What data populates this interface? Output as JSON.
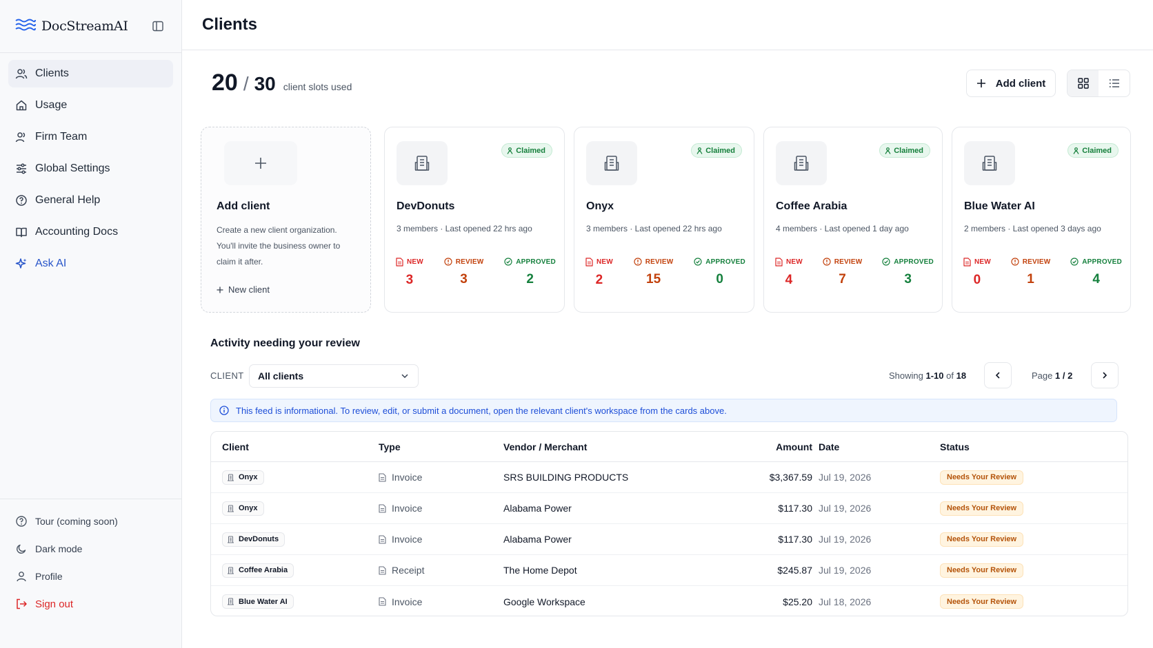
{
  "brand": {
    "name": "DocStreamAI"
  },
  "sidebar": {
    "items": [
      {
        "label": "Clients",
        "icon": "users-icon"
      },
      {
        "label": "Usage",
        "icon": "home-icon"
      },
      {
        "label": "Firm Team",
        "icon": "team-icon"
      },
      {
        "label": "Global Settings",
        "icon": "sliders-icon"
      },
      {
        "label": "General Help",
        "icon": "help-icon"
      },
      {
        "label": "Accounting Docs",
        "icon": "book-icon"
      },
      {
        "label": "Ask AI",
        "icon": "sparkle-icon"
      }
    ],
    "bottom": [
      {
        "label": "Tour (coming soon)",
        "icon": "help-icon"
      },
      {
        "label": "Dark mode",
        "icon": "moon-icon"
      },
      {
        "label": "Profile",
        "icon": "user-icon"
      },
      {
        "label": "Sign out",
        "icon": "sign-out-icon"
      }
    ]
  },
  "header": {
    "title": "Clients"
  },
  "slots": {
    "used": "20",
    "separator": "/",
    "total": "30",
    "label": "client slots used"
  },
  "toolbar": {
    "add_client": "Add client"
  },
  "add_card": {
    "title": "Add client",
    "description": "Create a new client organization. You'll invite the business owner to claim it after.",
    "link": "New client"
  },
  "stat_labels": {
    "new": "NEW",
    "review": "REVIEW",
    "approved": "APPROVED"
  },
  "clients": [
    {
      "name": "DevDonuts",
      "badge": "Claimed",
      "meta": "3 members · Last opened 22 hrs ago",
      "new": "3",
      "review": "3",
      "approved": "2"
    },
    {
      "name": "Onyx",
      "badge": "Claimed",
      "meta": "3 members · Last opened 22 hrs ago",
      "new": "2",
      "review": "15",
      "approved": "0"
    },
    {
      "name": "Coffee Arabia",
      "badge": "Claimed",
      "meta": "4 members · Last opened 1 day ago",
      "new": "4",
      "review": "7",
      "approved": "3"
    },
    {
      "name": "Blue Water AI",
      "badge": "Claimed",
      "meta": "2 members · Last opened 3 days ago",
      "new": "0",
      "review": "1",
      "approved": "4"
    }
  ],
  "activity": {
    "title": "Activity needing your review",
    "filter_label": "CLIENT",
    "filter_value": "All clients",
    "showing_prefix": "Showing",
    "showing_range": "1-10",
    "showing_of": "of",
    "showing_total": "18",
    "page_prefix": "Page",
    "page_value": "1 / 2",
    "banner": "This feed is informational. To review, edit, or submit a document, open the relevant client's workspace from the cards above."
  },
  "table": {
    "headers": {
      "client": "Client",
      "type": "Type",
      "vendor": "Vendor / Merchant",
      "amount": "Amount",
      "date": "Date",
      "status": "Status"
    },
    "rows": [
      {
        "client": "Onyx",
        "type": "Invoice",
        "vendor": "SRS BUILDING PRODUCTS",
        "amount": "$3,367.59",
        "date": "Jul 19, 2026",
        "status": "Needs Your Review"
      },
      {
        "client": "Onyx",
        "type": "Invoice",
        "vendor": "Alabama Power",
        "amount": "$117.30",
        "date": "Jul 19, 2026",
        "status": "Needs Your Review"
      },
      {
        "client": "DevDonuts",
        "type": "Invoice",
        "vendor": "Alabama Power",
        "amount": "$117.30",
        "date": "Jul 19, 2026",
        "status": "Needs Your Review"
      },
      {
        "client": "Coffee Arabia",
        "type": "Receipt",
        "vendor": "The Home Depot",
        "amount": "$245.87",
        "date": "Jul 19, 2026",
        "status": "Needs Your Review"
      },
      {
        "client": "Blue Water AI",
        "type": "Invoice",
        "vendor": "Google Workspace",
        "amount": "$25.20",
        "date": "Jul 18, 2026",
        "status": "Needs Your Review"
      }
    ]
  },
  "colors": {
    "accent": "#2855c9",
    "new": "#dc2626",
    "review": "#c2410c",
    "approved": "#15803d",
    "claimed_bg": "#e8f7ee"
  }
}
